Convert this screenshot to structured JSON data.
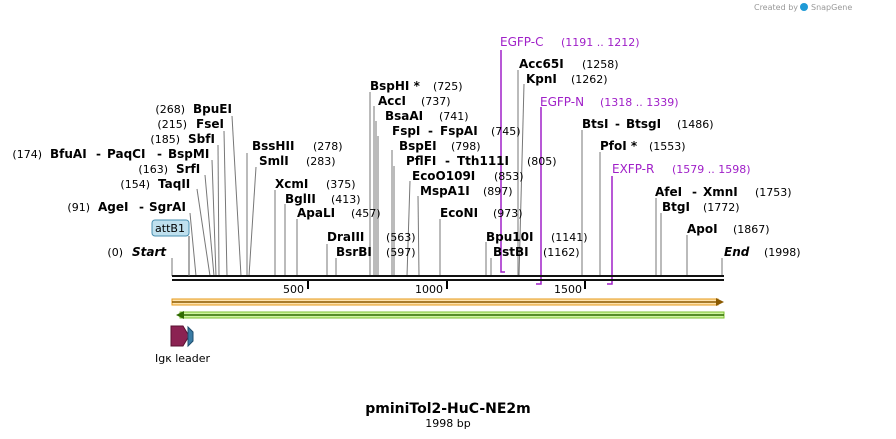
{
  "brand": {
    "created_by": "Created by",
    "name": "SnapGene"
  },
  "map": {
    "title": "pminiTol2-HuC-NE2m",
    "length": "1998 bp"
  },
  "enzymes": {
    "start": {
      "name": "Start",
      "pos": "(0)"
    },
    "end": {
      "name": "End",
      "pos": "(1998)"
    },
    "ageI": {
      "name": "AgeI",
      "pos": "(91)"
    },
    "sgrAI": {
      "name": "SgrAI"
    },
    "taqII": {
      "name": "TaqII",
      "pos": "(154)"
    },
    "srfI": {
      "name": "SrfI",
      "pos": "(163)"
    },
    "bfuAI": {
      "name": "BfuAI",
      "pos": "(174)"
    },
    "paqCI": {
      "name": "PaqCI"
    },
    "bspMI": {
      "name": "BspMI"
    },
    "sbfI": {
      "name": "SbfI",
      "pos": "(185)"
    },
    "fseI": {
      "name": "FseI",
      "pos": "(215)"
    },
    "bpuEI": {
      "name": "BpuEI",
      "pos": "(268)"
    },
    "bssHII": {
      "name": "BssHII",
      "pos": "(278)"
    },
    "smlI": {
      "name": "SmlI",
      "pos": "(283)"
    },
    "xcmI": {
      "name": "XcmI",
      "pos": "(375)"
    },
    "bglII": {
      "name": "BglII",
      "pos": "(413)"
    },
    "apaLI": {
      "name": "ApaLI",
      "pos": "(457)"
    },
    "draIII": {
      "name": "DraIII",
      "pos": "(563)"
    },
    "bsrBI": {
      "name": "BsrBI",
      "pos": "(597)"
    },
    "bspHI": {
      "name": "BspHI *",
      "pos": "(725)"
    },
    "accI": {
      "name": "AccI",
      "pos": "(737)"
    },
    "bsaAI": {
      "name": "BsaAI",
      "pos": "(741)"
    },
    "fspI": {
      "name": "FspI",
      "pos": "(745)"
    },
    "fspAI": {
      "name": "FspAI"
    },
    "bspEI": {
      "name": "BspEI",
      "pos": "(798)"
    },
    "pflFI": {
      "name": "PflFI",
      "pos": "(805)"
    },
    "tth111I": {
      "name": "Tth111I"
    },
    "ecoO109I": {
      "name": "EcoO109I",
      "pos": "(853)"
    },
    "mspA1I": {
      "name": "MspA1I",
      "pos": "(897)"
    },
    "ecoNI": {
      "name": "EcoNI",
      "pos": "(973)"
    },
    "bpu10I": {
      "name": "Bpu10I",
      "pos": "(1141)"
    },
    "bstBI": {
      "name": "BstBI",
      "pos": "(1162)"
    },
    "acc65I": {
      "name": "Acc65I",
      "pos": "(1258)"
    },
    "kpnI": {
      "name": "KpnI",
      "pos": "(1262)"
    },
    "btsI": {
      "name": "BtsI",
      "pos": "(1486)"
    },
    "btsgI": {
      "name": "BtsgI"
    },
    "pfoI": {
      "name": "PfoI *",
      "pos": "(1553)"
    },
    "afeI": {
      "name": "AfeI",
      "pos": "(1753)"
    },
    "xmnI": {
      "name": "XmnI"
    },
    "btgI": {
      "name": "BtgI",
      "pos": "(1772)"
    },
    "apoI": {
      "name": "ApoI",
      "pos": "(1867)"
    }
  },
  "primers": {
    "egfpC": {
      "name": "EGFP-C",
      "range": "(1191 .. 1212)"
    },
    "egfpN": {
      "name": "EGFP-N",
      "range": "(1318 .. 1339)"
    },
    "exfpR": {
      "name": "EXFP-R",
      "range": "(1579 .. 1598)"
    }
  },
  "features": {
    "attB1": "attB1",
    "igk": "Igκ leader"
  },
  "ticks": [
    "500",
    "1000",
    "1500"
  ],
  "colors": {
    "primer": "#a020c8",
    "orange_feature": "#f5a623",
    "green_feature": "#7ed321",
    "igk": "#8b2252",
    "attb": "#3a7ca5"
  }
}
